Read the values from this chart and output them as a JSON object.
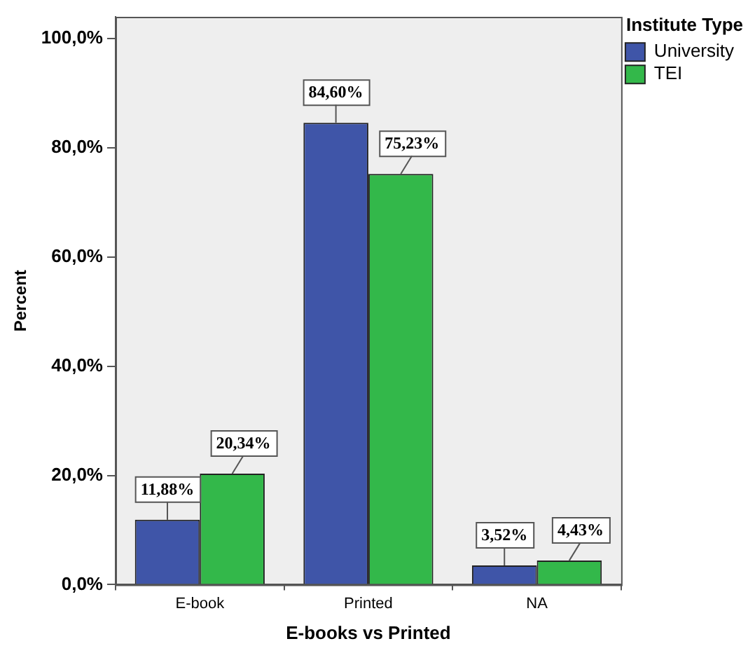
{
  "chart_data": {
    "type": "bar",
    "xlabel": "E-books vs Printed",
    "ylabel": "Percent",
    "legend_title": "Institute Type",
    "legend": "top right",
    "categories": [
      "E-book",
      "Printed",
      "NA"
    ],
    "series": [
      {
        "name": "University",
        "color": "#3f55a8",
        "values": [
          11.88,
          84.6,
          3.52
        ],
        "value_labels": [
          "11,88%",
          "84,60%",
          "3,52%"
        ]
      },
      {
        "name": "TEI",
        "color": "#33b84a",
        "values": [
          20.34,
          75.23,
          4.43
        ],
        "value_labels": [
          "20,34%",
          "75,23%",
          "4,43%"
        ]
      }
    ],
    "ylim": [
      0,
      104
    ],
    "yticks": [
      {
        "value": 0,
        "label": "0,0%"
      },
      {
        "value": 20,
        "label": "20,0%"
      },
      {
        "value": 40,
        "label": "40,0%"
      },
      {
        "value": 60,
        "label": "60,0%"
      },
      {
        "value": 80,
        "label": "80,0%"
      },
      {
        "value": 100,
        "label": "100,0%"
      }
    ]
  }
}
